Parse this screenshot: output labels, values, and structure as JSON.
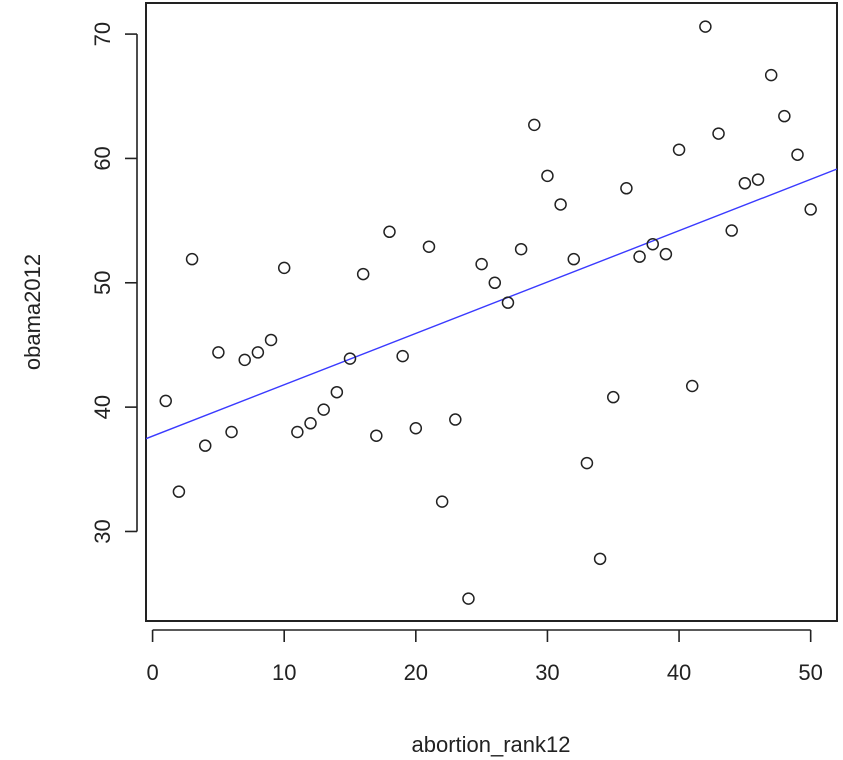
{
  "chart_data": {
    "type": "scatter",
    "title": "",
    "xlabel": "abortion_rank12",
    "ylabel": "obama2012",
    "xlim": [
      -0.5,
      52
    ],
    "ylim": [
      22.8,
      72.5
    ],
    "x_ticks": [
      0,
      10,
      20,
      30,
      40,
      50
    ],
    "y_ticks": [
      30,
      40,
      50,
      60,
      70
    ],
    "grid": false,
    "legend": "none",
    "points": [
      {
        "x": 1,
        "y": 40.5
      },
      {
        "x": 2,
        "y": 33.2
      },
      {
        "x": 3,
        "y": 51.9
      },
      {
        "x": 4,
        "y": 36.9
      },
      {
        "x": 5,
        "y": 44.4
      },
      {
        "x": 6,
        "y": 38.0
      },
      {
        "x": 7,
        "y": 43.8
      },
      {
        "x": 8,
        "y": 44.4
      },
      {
        "x": 9,
        "y": 45.4
      },
      {
        "x": 10,
        "y": 51.2
      },
      {
        "x": 11,
        "y": 38.0
      },
      {
        "x": 12,
        "y": 38.7
      },
      {
        "x": 13,
        "y": 39.8
      },
      {
        "x": 14,
        "y": 41.2
      },
      {
        "x": 15,
        "y": 43.9
      },
      {
        "x": 16,
        "y": 50.7
      },
      {
        "x": 17,
        "y": 37.7
      },
      {
        "x": 18,
        "y": 54.1
      },
      {
        "x": 19,
        "y": 44.1
      },
      {
        "x": 20,
        "y": 38.3
      },
      {
        "x": 21,
        "y": 52.9
      },
      {
        "x": 22,
        "y": 32.4
      },
      {
        "x": 23,
        "y": 39.0
      },
      {
        "x": 24,
        "y": 24.6
      },
      {
        "x": 25,
        "y": 51.5
      },
      {
        "x": 26,
        "y": 50.0
      },
      {
        "x": 27,
        "y": 48.4
      },
      {
        "x": 28,
        "y": 52.7
      },
      {
        "x": 29,
        "y": 62.7
      },
      {
        "x": 30,
        "y": 58.6
      },
      {
        "x": 31,
        "y": 56.3
      },
      {
        "x": 32,
        "y": 51.9
      },
      {
        "x": 33,
        "y": 35.5
      },
      {
        "x": 34,
        "y": 27.8
      },
      {
        "x": 35,
        "y": 40.8
      },
      {
        "x": 36,
        "y": 57.6
      },
      {
        "x": 37,
        "y": 52.1
      },
      {
        "x": 38,
        "y": 53.1
      },
      {
        "x": 39,
        "y": 52.3
      },
      {
        "x": 40,
        "y": 60.7
      },
      {
        "x": 41,
        "y": 41.7
      },
      {
        "x": 42,
        "y": 70.6
      },
      {
        "x": 43,
        "y": 62.0
      },
      {
        "x": 44,
        "y": 54.2
      },
      {
        "x": 45,
        "y": 58.0
      },
      {
        "x": 46,
        "y": 58.3
      },
      {
        "x": 47,
        "y": 66.7
      },
      {
        "x": 48,
        "y": 63.4
      },
      {
        "x": 49,
        "y": 60.3
      },
      {
        "x": 50,
        "y": 55.9
      }
    ],
    "fit_line": {
      "color": "#3a3aff",
      "intercept": 37.67,
      "slope": 0.413
    },
    "point_color": "#222222"
  }
}
